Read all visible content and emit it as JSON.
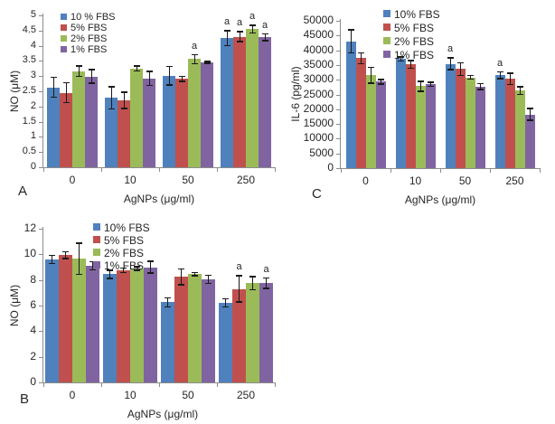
{
  "figure": {
    "description": "Three-panel bar chart figure: NO and IL-6 levels vs AgNPs dose under different FBS concentrations",
    "axis_color": "#8c8c8c",
    "error_bar_color": "#1a1a1a",
    "text_color": "#262626"
  },
  "chart_data": [
    {
      "id": "A",
      "type": "bar",
      "panel_letter": "A",
      "xlabel": "AgNPs (μg/ml)",
      "ylabel": "NO (μM)",
      "ylim": [
        0,
        5
      ],
      "ystep": 0.5,
      "yticks": [
        "0",
        "0.5",
        "1",
        "1.5",
        "2",
        "2.5",
        "3",
        "3.5",
        "4",
        "4.5",
        "5"
      ],
      "grid": false,
      "legend_position": "top-left-inside",
      "categories": [
        "0",
        "10",
        "50",
        "250"
      ],
      "series": [
        {
          "name": "10 % FBS",
          "color": "#4F81BD",
          "values": [
            2.63,
            2.28,
            3.01,
            4.25
          ],
          "errors": [
            0.32,
            0.36,
            0.3,
            0.24
          ]
        },
        {
          "name": "5% FBS",
          "color": "#C0504D",
          "values": [
            2.45,
            2.2,
            2.91,
            4.3
          ],
          "errors": [
            0.32,
            0.26,
            0.08,
            0.16
          ]
        },
        {
          "name": "2% FBS",
          "color": "#9BBB59",
          "values": [
            3.16,
            3.25,
            3.56,
            4.55
          ],
          "errors": [
            0.16,
            0.08,
            0.14,
            0.12
          ]
        },
        {
          "name": "1% FBS",
          "color": "#8064A2",
          "values": [
            2.99,
            2.92,
            3.45,
            4.28
          ],
          "errors": [
            0.22,
            0.22,
            0.02,
            0.1
          ]
        }
      ],
      "annotations": [
        {
          "text": "a",
          "category": 2,
          "series": 2
        },
        {
          "text": "a",
          "category": 3,
          "series": 0
        },
        {
          "text": "a",
          "category": 3,
          "series": 1
        },
        {
          "text": "a",
          "category": 3,
          "series": 2
        },
        {
          "text": "a",
          "category": 3,
          "series": 3
        }
      ]
    },
    {
      "id": "B",
      "type": "bar",
      "panel_letter": "B",
      "xlabel": "AgNPs (μg/ml)",
      "ylabel": "NO (μM)",
      "ylim": [
        0,
        12
      ],
      "ystep": 2,
      "yticks": [
        "0",
        "2",
        "4",
        "6",
        "8",
        "10",
        "12"
      ],
      "grid": false,
      "legend_position": "top-left-inside",
      "categories": [
        "0",
        "10",
        "50",
        "250"
      ],
      "series": [
        {
          "name": "10% FBS",
          "color": "#4F81BD",
          "values": [
            9.6,
            8.45,
            6.25,
            6.2
          ],
          "errors": [
            0.3,
            0.3,
            0.35,
            0.3
          ]
        },
        {
          "name": "5% FBS",
          "color": "#C0504D",
          "values": [
            9.95,
            8.75,
            8.25,
            7.3
          ],
          "errors": [
            0.25,
            0.15,
            0.6,
            1.0
          ]
        },
        {
          "name": "2% FBS",
          "color": "#9BBB59",
          "values": [
            9.65,
            8.9,
            8.45,
            7.75
          ],
          "errors": [
            1.2,
            0.12,
            0.1,
            0.5
          ]
        },
        {
          "name": "1% FBS",
          "color": "#8064A2",
          "values": [
            9.1,
            9.0,
            8.05,
            7.75
          ],
          "errors": [
            0.3,
            0.45,
            0.3,
            0.4
          ]
        }
      ],
      "annotations": [
        {
          "text": "a",
          "category": 3,
          "series": 1
        },
        {
          "text": "a",
          "category": 3,
          "series": 3
        }
      ]
    },
    {
      "id": "C",
      "type": "bar",
      "panel_letter": "C",
      "xlabel": "AgNPs (μg/ml)",
      "ylabel": "IL-6 (pg/ml)",
      "ylim": [
        0,
        50000
      ],
      "ystep": 5000,
      "yticks": [
        "0",
        "5000",
        "10000",
        "15000",
        "20000",
        "25000",
        "30000",
        "35000",
        "40000",
        "45000",
        "50000"
      ],
      "grid": false,
      "legend_position": "top-left-inside",
      "categories": [
        "0",
        "10",
        "50",
        "250"
      ],
      "series": [
        {
          "name": "10% FBS",
          "color": "#4F81BD",
          "values": [
            43000,
            37000,
            35400,
            31500
          ],
          "errors": [
            3800,
            600,
            1900,
            1100
          ]
        },
        {
          "name": "5% FBS",
          "color": "#C0504D",
          "values": [
            37300,
            35200,
            33600,
            30300
          ],
          "errors": [
            1800,
            1200,
            2100,
            1900
          ]
        },
        {
          "name": "2% FBS",
          "color": "#9BBB59",
          "values": [
            31500,
            27800,
            30800,
            26300
          ],
          "errors": [
            2600,
            1600,
            500,
            1200
          ]
        },
        {
          "name": "1% FBS",
          "color": "#8064A2",
          "values": [
            29300,
            28400,
            27700,
            18200
          ],
          "errors": [
            700,
            600,
            900,
            1900
          ]
        }
      ],
      "annotations": [
        {
          "text": "a",
          "category": 2,
          "series": 0
        },
        {
          "text": "a",
          "category": 3,
          "series": 0
        }
      ]
    }
  ]
}
